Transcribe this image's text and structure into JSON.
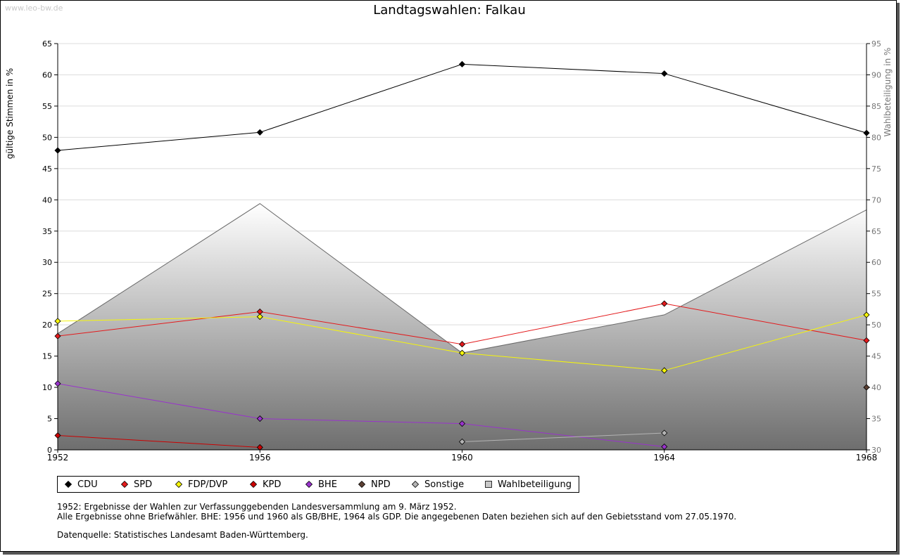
{
  "watermark": "www.leo-bw.de",
  "title": "Landtagswahlen: Falkau",
  "notes": {
    "line1": "1952: Ergebnisse der Wahlen zur Verfassunggebenden Landesversammlung am 9. März 1952.",
    "line2": "Alle Ergebnisse ohne Briefwähler. BHE: 1956 und 1960 als GB/BHE, 1964 als GDP. Die angegebenen Daten beziehen sich auf den Gebietsstand vom 27.05.1970.",
    "source": "Datenquelle: Statistisches Landesamt Baden-Württemberg."
  },
  "chart_data": {
    "type": "line",
    "title": "Landtagswahlen: Falkau",
    "x": [
      1952,
      1956,
      1960,
      1964,
      1968
    ],
    "ylabel": "gültige Stimmen in %",
    "y2label": "Wahlbeteiligung in %",
    "ylim": [
      0,
      65
    ],
    "y2lim": [
      30,
      95
    ],
    "yticks": [
      0,
      5,
      10,
      15,
      20,
      25,
      30,
      35,
      40,
      45,
      50,
      55,
      60,
      65
    ],
    "y2ticks": [
      30,
      35,
      40,
      45,
      50,
      55,
      60,
      65,
      70,
      75,
      80,
      85,
      90,
      95
    ],
    "grid": true,
    "legend_position": "bottom",
    "series": [
      {
        "name": "CDU",
        "color": "#000000",
        "values": [
          47.9,
          50.8,
          61.7,
          60.2,
          50.7
        ]
      },
      {
        "name": "SPD",
        "color": "#e31a1c",
        "values": [
          18.2,
          22.1,
          16.9,
          23.4,
          17.5
        ]
      },
      {
        "name": "FDP/DVP",
        "color": "#f5f50a",
        "values": [
          20.6,
          21.3,
          15.5,
          12.7,
          21.6
        ]
      },
      {
        "name": "KPD",
        "color": "#cc0000",
        "values": [
          2.3,
          0.4,
          null,
          null,
          null
        ]
      },
      {
        "name": "BHE",
        "color": "#9933cc",
        "values": [
          10.6,
          5.0,
          4.2,
          0.5,
          null
        ]
      },
      {
        "name": "NPD",
        "color": "#5c4033",
        "values": [
          null,
          null,
          null,
          null,
          10.0
        ]
      },
      {
        "name": "Sonstige",
        "color": "#b4b4b4",
        "values": [
          null,
          null,
          1.3,
          2.7,
          null
        ]
      }
    ],
    "area_series": {
      "name": "Wahlbeteiligung",
      "axis": "right",
      "values": [
        48.6,
        69.4,
        45.5,
        51.6,
        68.4
      ]
    }
  }
}
